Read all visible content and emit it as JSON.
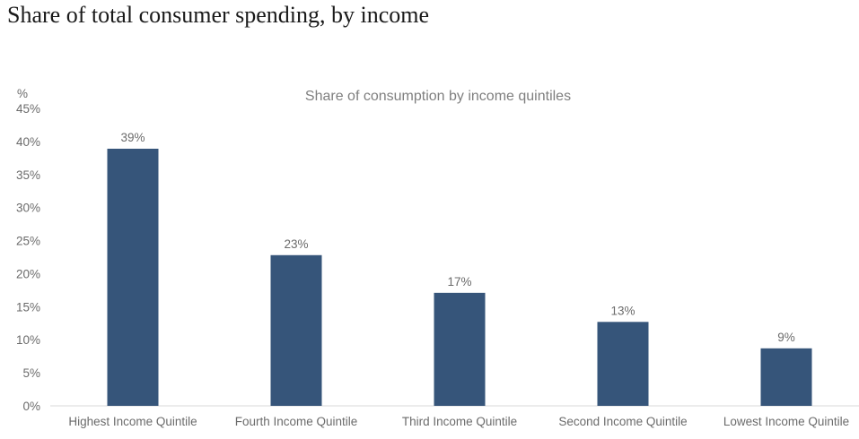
{
  "page": {
    "title": "Share of total consumer spending, by income"
  },
  "chart_data": {
    "type": "bar",
    "title": "Share of consumption by income quintiles",
    "ylabel": "%",
    "xlabel": "",
    "ylim": [
      0,
      45
    ],
    "yticks": [
      0,
      5,
      10,
      15,
      20,
      25,
      30,
      35,
      40,
      45
    ],
    "ytick_suffix": "%",
    "categories": [
      "Highest Income Quintile",
      "Fourth Income Quintile",
      "Third Income Quintile",
      "Second Income Quintile",
      "Lowest Income Quintile"
    ],
    "values": [
      38.9,
      22.8,
      17.1,
      12.7,
      8.7
    ],
    "data_labels": [
      "39%",
      "23%",
      "17%",
      "13%",
      "9%"
    ],
    "grid": false,
    "legend": "none",
    "bar_color": "#36557a",
    "axis_color": "#d9d9d9"
  }
}
